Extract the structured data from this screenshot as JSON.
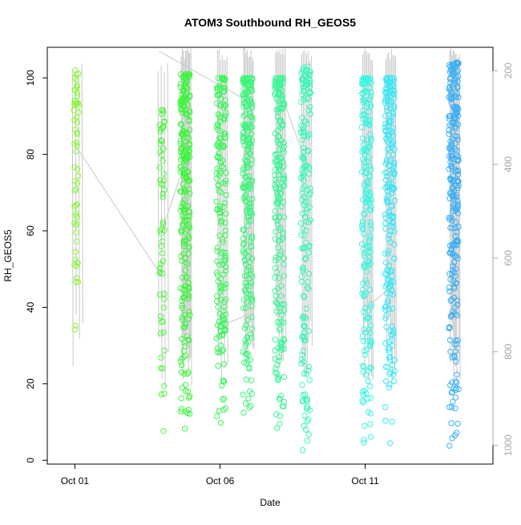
{
  "chart_data": {
    "type": "scatter",
    "title": "ATOM3 Southbound RH_GEOS5",
    "xlabel": "Date",
    "ylabel": "RH_GEOS5",
    "x_ticks": [
      {
        "day": 1,
        "label": "Oct 01"
      },
      {
        "day": 6,
        "label": "Oct 06"
      },
      {
        "day": 11,
        "label": "Oct 11"
      }
    ],
    "xlim_day": [
      0.05,
      15.4
    ],
    "ylim": [
      -1,
      108
    ],
    "y_ticks": [
      0,
      20,
      40,
      60,
      80,
      100
    ],
    "right_axis": {
      "ticks": [
        200,
        400,
        600,
        800,
        1000
      ],
      "lim": [
        1040,
        150
      ],
      "color": "#a6a6a6"
    },
    "flights": [
      {
        "day": 1.05,
        "n": 60,
        "min": 31,
        "max": 102,
        "color": "#8cf53c",
        "pmin": 180,
        "pmax": 880
      },
      {
        "day": 4.0,
        "n": 60,
        "min": 4,
        "max": 92,
        "color": "#4ef53c",
        "pmin": 180,
        "pmax": 880
      },
      {
        "day": 4.8,
        "n": 240,
        "min": 6,
        "max": 101,
        "color": "#3cf53c",
        "pmin": 150,
        "pmax": 880
      },
      {
        "day": 6.05,
        "n": 180,
        "min": 8,
        "max": 100,
        "color": "#3cf55c",
        "pmin": 150,
        "pmax": 880
      },
      {
        "day": 6.95,
        "n": 230,
        "min": 6,
        "max": 100,
        "color": "#3cf57a",
        "pmin": 150,
        "pmax": 880
      },
      {
        "day": 8.05,
        "n": 200,
        "min": 7,
        "max": 100,
        "color": "#3cf598",
        "pmin": 150,
        "pmax": 880
      },
      {
        "day": 8.95,
        "n": 170,
        "min": 2,
        "max": 103,
        "color": "#3cf5b8",
        "pmin": 150,
        "pmax": 880
      },
      {
        "day": 11.05,
        "n": 200,
        "min": 4,
        "max": 100,
        "color": "#3cf5e0",
        "pmin": 150,
        "pmax": 880
      },
      {
        "day": 11.85,
        "n": 210,
        "min": 4,
        "max": 100,
        "color": "#3ce6f5",
        "pmin": 150,
        "pmax": 880
      },
      {
        "day": 14.05,
        "n": 260,
        "min": 3,
        "max": 104,
        "color": "#3cb0f5",
        "pmin": 150,
        "pmax": 880
      }
    ]
  }
}
